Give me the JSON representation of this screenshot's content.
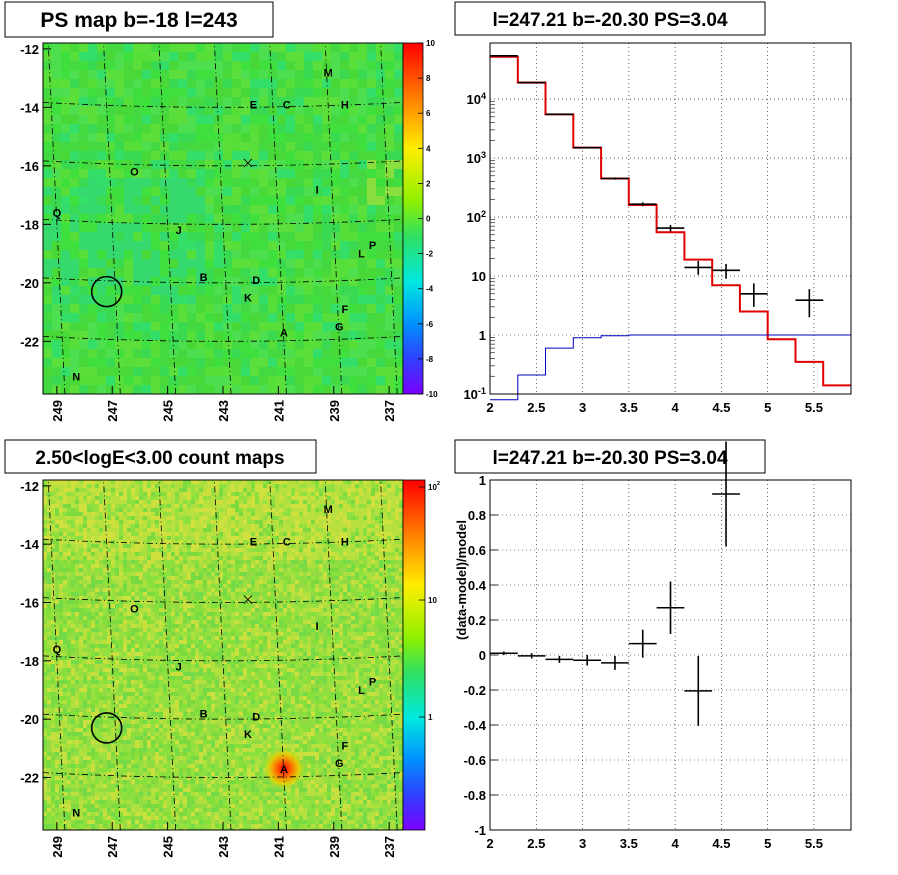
{
  "chart_data": [
    {
      "type": "heatmap",
      "title": "PS map b=-18 l=243",
      "x_ticks": [
        "249",
        "247",
        "245",
        "243",
        "241",
        "239",
        "237"
      ],
      "y_ticks": [
        "-12",
        "-14",
        "-16",
        "-18",
        "-20",
        "-22"
      ],
      "xlim": [
        249.5,
        236.5
      ],
      "ylim": [
        -23.8,
        -11.8
      ],
      "colorbar": {
        "ticks": [
          "10",
          "8",
          "6",
          "4",
          "2",
          "0",
          "-2",
          "-4",
          "-6",
          "-8",
          "-10"
        ],
        "range": [
          -10,
          10
        ]
      },
      "base_color": "#44dc3a",
      "sources": [
        {
          "label": "M",
          "l": 239.2,
          "b": -12.8
        },
        {
          "label": "E",
          "l": 241.9,
          "b": -13.9
        },
        {
          "label": "C",
          "l": 240.7,
          "b": -13.9
        },
        {
          "label": "H",
          "l": 238.6,
          "b": -13.9
        },
        {
          "label": "O",
          "l": 246.2,
          "b": -16.2
        },
        {
          "label": "I",
          "l": 239.6,
          "b": -16.8
        },
        {
          "label": "Q",
          "l": 249.0,
          "b": -17.6
        },
        {
          "label": "J",
          "l": 244.6,
          "b": -18.2
        },
        {
          "label": "P",
          "l": 237.6,
          "b": -18.7
        },
        {
          "label": "L",
          "l": 238.0,
          "b": -19.0
        },
        {
          "label": "B",
          "l": 243.7,
          "b": -19.8
        },
        {
          "label": "D",
          "l": 241.8,
          "b": -19.9
        },
        {
          "label": "K",
          "l": 242.1,
          "b": -20.5
        },
        {
          "label": "F",
          "l": 238.6,
          "b": -20.9
        },
        {
          "label": "G",
          "l": 238.8,
          "b": -21.5
        },
        {
          "label": "A",
          "l": 240.8,
          "b": -21.7
        },
        {
          "label": "N",
          "l": 248.3,
          "b": -23.2
        }
      ],
      "circle": {
        "l": 247.2,
        "b": -20.3
      }
    },
    {
      "type": "line",
      "title": "l=247.21 b=-20.30 PS=3.04",
      "x_ticks": [
        "2",
        "2.5",
        "3",
        "3.5",
        "4",
        "4.5",
        "5",
        "5.5"
      ],
      "y_ticks": [
        "10^{-1}",
        "1",
        "10",
        "10^{2}",
        "10^{3}",
        "10^{4}"
      ],
      "xlim": [
        2,
        5.9
      ],
      "ylim_log": [
        -1,
        4.95
      ],
      "bin_edges": [
        2,
        2.3,
        2.6,
        2.9,
        3.2,
        3.5,
        3.8,
        4.1,
        4.4,
        4.7,
        5.0,
        5.3,
        5.6,
        5.9
      ],
      "series": [
        {
          "values": [
            52000,
            19000,
            5500,
            1500,
            450,
            160,
            55,
            19,
            7,
            2.5,
            0.85,
            0.35,
            0.14
          ],
          "color": "#e00000"
        },
        {
          "values": [
            0.08,
            0.21,
            0.6,
            0.9,
            0.97,
            1.0,
            1.0,
            1.0,
            1.0,
            1.0,
            1.0,
            1.0,
            1.0
          ],
          "color": "#0000c0"
        }
      ],
      "points": [
        {
          "x": 2.15,
          "y": 54000,
          "dx": 0.15,
          "lo": 53000,
          "hi": 55000
        },
        {
          "x": 2.45,
          "y": 19000,
          "dx": 0.15,
          "lo": 18700,
          "hi": 19300
        },
        {
          "x": 2.75,
          "y": 5500,
          "dx": 0.15,
          "lo": 5400,
          "hi": 5600
        },
        {
          "x": 3.05,
          "y": 1500,
          "dx": 0.15,
          "lo": 1450,
          "hi": 1550
        },
        {
          "x": 3.35,
          "y": 450,
          "dx": 0.15,
          "lo": 430,
          "hi": 470
        },
        {
          "x": 3.65,
          "y": 165,
          "dx": 0.15,
          "lo": 153,
          "hi": 177
        },
        {
          "x": 3.95,
          "y": 65,
          "dx": 0.15,
          "lo": 57,
          "hi": 73
        },
        {
          "x": 4.25,
          "y": 14,
          "dx": 0.15,
          "lo": 10.5,
          "hi": 18
        },
        {
          "x": 4.55,
          "y": 12.5,
          "dx": 0.15,
          "lo": 9,
          "hi": 16
        },
        {
          "x": 4.85,
          "y": 5,
          "dx": 0.15,
          "lo": 3,
          "hi": 7.5
        },
        {
          "x": 5.45,
          "y": 3.9,
          "dx": 0.15,
          "lo": 2,
          "hi": 6
        }
      ]
    },
    {
      "type": "heatmap",
      "title": "2.50<logE<3.00 count maps",
      "x_ticks": [
        "249",
        "247",
        "245",
        "243",
        "241",
        "239",
        "237"
      ],
      "y_ticks": [
        "-12",
        "-14",
        "-16",
        "-18",
        "-20",
        "-22"
      ],
      "xlim": [
        249.5,
        236.5
      ],
      "ylim": [
        -23.8,
        -11.8
      ],
      "colorbar": {
        "ticks": [
          "10^{2}",
          "10",
          "1"
        ],
        "log": true
      },
      "base_color": "#86e03c",
      "hotspot": {
        "label": "A",
        "l": 240.8,
        "b": -21.7
      },
      "sources_ref": 0,
      "circle": {
        "l": 247.2,
        "b": -20.3
      }
    },
    {
      "type": "scatter",
      "title": "l=247.21 b=-20.30 PS=3.04",
      "ylabel": "(data-model)/model",
      "x_ticks": [
        "2",
        "2.5",
        "3",
        "3.5",
        "4",
        "4.5",
        "5",
        "5.5"
      ],
      "y_ticks": [
        "1",
        "0.8",
        "0.6",
        "0.4",
        "0.2",
        "0",
        "-0.2",
        "-0.4",
        "-0.6",
        "-0.8",
        "-1"
      ],
      "xlim": [
        2,
        5.9
      ],
      "ylim": [
        -1,
        1
      ],
      "points": [
        {
          "x": 2.15,
          "y": 0.01,
          "dx": 0.15,
          "err": 0.01
        },
        {
          "x": 2.45,
          "y": -0.005,
          "dx": 0.15,
          "err": 0.015
        },
        {
          "x": 2.75,
          "y": -0.025,
          "dx": 0.15,
          "err": 0.02
        },
        {
          "x": 3.05,
          "y": -0.03,
          "dx": 0.15,
          "err": 0.03
        },
        {
          "x": 3.35,
          "y": -0.045,
          "dx": 0.15,
          "err": 0.04
        },
        {
          "x": 3.65,
          "y": 0.065,
          "dx": 0.15,
          "err": 0.08
        },
        {
          "x": 3.95,
          "y": 0.27,
          "dx": 0.15,
          "err": 0.15
        },
        {
          "x": 4.25,
          "y": -0.205,
          "dx": 0.15,
          "err": 0.2
        },
        {
          "x": 4.55,
          "y": 0.92,
          "dx": 0.15,
          "err": 0.3
        }
      ]
    }
  ]
}
